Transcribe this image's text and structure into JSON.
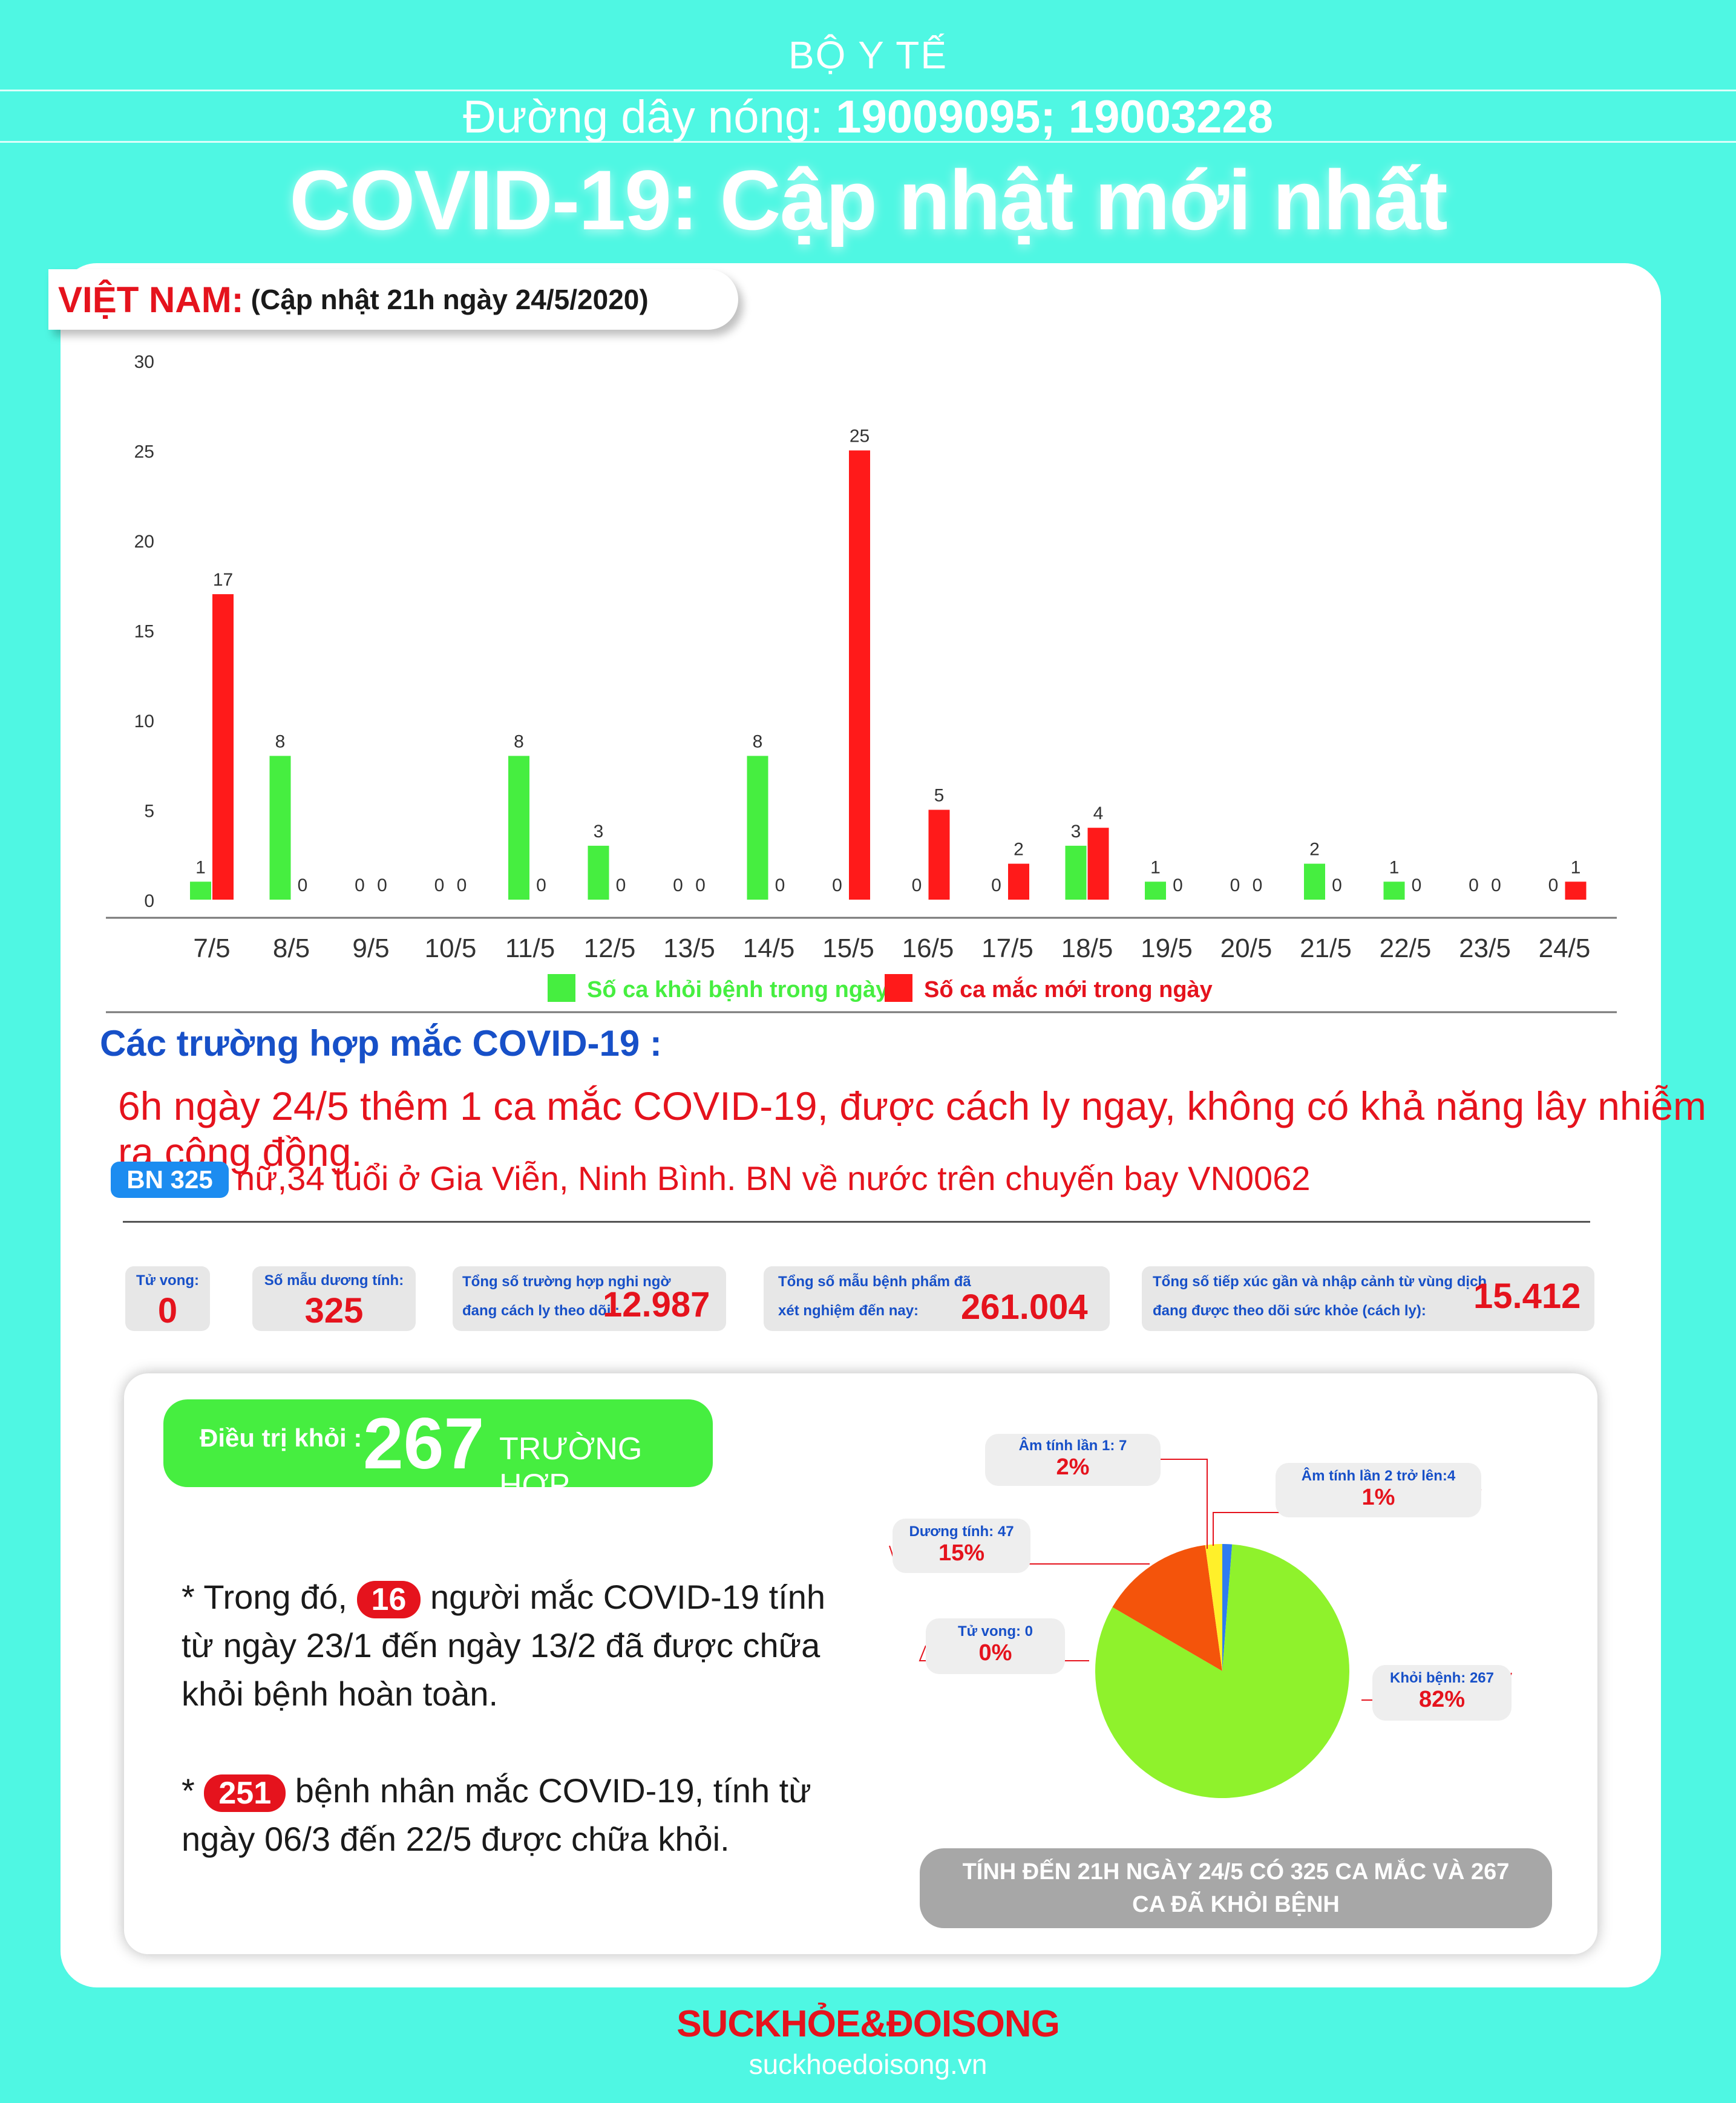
{
  "header": {
    "ministry": "BỘ Y TẾ",
    "hotline_label": "Đường dây nóng:",
    "hotline_numbers": "19009095; 19003228",
    "title": "COVID-19: Cập nhật mới nhất"
  },
  "country_tab": {
    "country": "VIỆT NAM:",
    "updated": "(Cập nhật 21h ngày 24/5/2020)"
  },
  "chart_data": {
    "type": "bar",
    "title": "",
    "xlabel": "",
    "ylabel": "",
    "ylim": [
      0,
      30
    ],
    "yticks": [
      0,
      5,
      10,
      15,
      20,
      25,
      30
    ],
    "grid": false,
    "legend_position": "bottom",
    "categories": [
      "7/5",
      "8/5",
      "9/5",
      "10/5",
      "11/5",
      "12/5",
      "13/5",
      "14/5",
      "15/5",
      "16/5",
      "17/5",
      "18/5",
      "19/5",
      "20/5",
      "21/5",
      "22/5",
      "23/5",
      "24/5"
    ],
    "series": [
      {
        "name": "Số ca khỏi bệnh trong ngày",
        "color": "#46ee40",
        "values": [
          1,
          8,
          0,
          0,
          8,
          3,
          0,
          8,
          0,
          0,
          0,
          3,
          1,
          0,
          2,
          1,
          0,
          0
        ]
      },
      {
        "name": "Số ca mắc mới  trong ngày",
        "color": "#ff1a1a",
        "values": [
          17,
          0,
          0,
          0,
          0,
          0,
          0,
          0,
          25,
          5,
          2,
          4,
          0,
          0,
          0,
          0,
          0,
          1
        ]
      }
    ]
  },
  "cases_section": {
    "title": "Các trường hợp mắc COVID-19 :",
    "news": "6h ngày 24/5 thêm 1 ca mắc COVID-19, được cách ly ngay, không có khả năng lây nhiễm ra cộng đồng.",
    "patient_badge": "BN 325",
    "patient_info": "nữ,34 tuổi ở Gia Viễn, Ninh Bình. BN về nước trên chuyến bay VN0062"
  },
  "stats": [
    {
      "label": "Tử vong:",
      "value": "0"
    },
    {
      "label": "Số mẫu dương tính:",
      "value": "325"
    },
    {
      "label_line1": "Tổng số trường hợp nghi ngờ",
      "label_line2": "đang cách ly theo dõi :",
      "value": "12.987"
    },
    {
      "label_line1": "Tổng số mẫu bệnh phẩm đã",
      "label_line2": "xét nghiệm đến nay:",
      "value": "261.004"
    },
    {
      "label_line1": "Tổng số tiếp xúc gần và nhập cảnh từ vùng dịch",
      "label_line2": "đang được theo dõi sức khỏe (cách ly):",
      "value": "15.412"
    }
  ],
  "recovery": {
    "label": "Điều trị khỏi :",
    "count": "267",
    "unit": "TRƯỜNG HỢP",
    "note1_pre": "* Trong đó,",
    "note1_num": "16",
    "note1_post_line1": "người mắc COVID-19 tính",
    "note1_line2": "từ ngày 23/1 đến ngày 13/2 đã được chữa",
    "note1_line3": "khỏi bệnh hoàn toàn.",
    "note2_pre": "*",
    "note2_num": "251",
    "note2_post_line1": "bệnh nhân  mắc COVID-19, tính từ",
    "note2_line2": "ngày 06/3 đến 22/5 được chữa khỏi."
  },
  "pie": {
    "slices": [
      {
        "label": "Khỏi bệnh: 267",
        "pct": "82%",
        "value": 267,
        "color": "#8ff22c"
      },
      {
        "label": "Dương tính: 47",
        "pct": "15%",
        "value": 47,
        "color": "#f4540b"
      },
      {
        "label": "Âm tính lần 1: 7",
        "pct": "2%",
        "value": 7,
        "color": "#fff02a"
      },
      {
        "label": "Âm tính lần 2 trở lên:4",
        "pct": "1%",
        "value": 4,
        "color": "#2f7cf0"
      },
      {
        "label": "Tử vong: 0",
        "pct": "0%",
        "value": 0,
        "color": "#e5131d"
      }
    ]
  },
  "summary": "TÍNH ĐẾN 21H NGÀY 24/5 CÓ 325 CA MẮC VÀ 267 CA ĐÃ KHỎI BỆNH",
  "footer": {
    "logo": "SUCKHỎE&ĐOISONG",
    "site": "suckhoedoisong.vn"
  }
}
